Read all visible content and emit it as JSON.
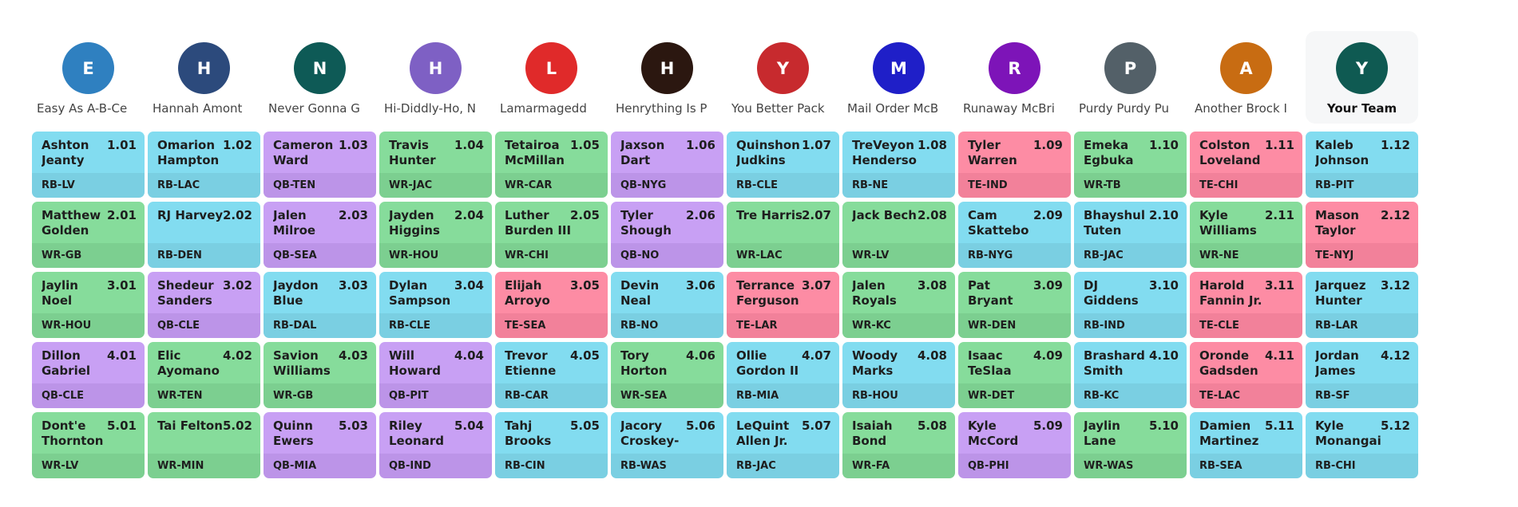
{
  "teams": [
    {
      "initial": "E",
      "name": "Easy As A-B-Ce",
      "color": "#2f80c0"
    },
    {
      "initial": "H",
      "name": "Hannah Amont",
      "color": "#2c4a7c"
    },
    {
      "initial": "N",
      "name": "Never Gonna G",
      "color": "#0e5a56"
    },
    {
      "initial": "H",
      "name": "Hi-Diddly-Ho, N",
      "color": "#7e60c4"
    },
    {
      "initial": "L",
      "name": "Lamarmagedd",
      "color": "#e02a2a"
    },
    {
      "initial": "H",
      "name": "Henrything Is P",
      "color": "#2b1710"
    },
    {
      "initial": "Y",
      "name": "You Better Pack",
      "color": "#c72a2e"
    },
    {
      "initial": "M",
      "name": "Mail Order McB",
      "color": "#1f1fc8"
    },
    {
      "initial": "R",
      "name": "Runaway McBri",
      "color": "#7d14b8"
    },
    {
      "initial": "P",
      "name": "Purdy Purdy Pu",
      "color": "#536068"
    },
    {
      "initial": "A",
      "name": "Another Brock I",
      "color": "#c86c12"
    },
    {
      "initial": "Y",
      "name": "Your Team",
      "color": "#0f5a52"
    }
  ],
  "rounds": [
    [
      {
        "name": "Ashton Jeanty",
        "pick": "1.01",
        "pos": "RB-LV",
        "type": "RB"
      },
      {
        "name": "Omarion Hampton",
        "pick": "1.02",
        "pos": "RB-LAC",
        "type": "RB"
      },
      {
        "name": "Cameron Ward",
        "pick": "1.03",
        "pos": "QB-TEN",
        "type": "QB"
      },
      {
        "name": "Travis Hunter",
        "pick": "1.04",
        "pos": "WR-JAC",
        "type": "WR"
      },
      {
        "name": "Tetairoa McMillan",
        "pick": "1.05",
        "pos": "WR-CAR",
        "type": "WR"
      },
      {
        "name": "Jaxson Dart",
        "pick": "1.06",
        "pos": "QB-NYG",
        "type": "QB"
      },
      {
        "name": "Quinshon Judkins",
        "pick": "1.07",
        "pos": "RB-CLE",
        "type": "RB"
      },
      {
        "name": "TreVeyon Henderson",
        "pick": "1.08",
        "pos": "RB-NE",
        "type": "RB"
      },
      {
        "name": "Tyler Warren",
        "pick": "1.09",
        "pos": "TE-IND",
        "type": "TE"
      },
      {
        "name": "Emeka Egbuka",
        "pick": "1.10",
        "pos": "WR-TB",
        "type": "WR"
      },
      {
        "name": "Colston Loveland",
        "pick": "1.11",
        "pos": "TE-CHI",
        "type": "TE"
      },
      {
        "name": "Kaleb Johnson",
        "pick": "1.12",
        "pos": "RB-PIT",
        "type": "RB"
      }
    ],
    [
      {
        "name": "Matthew Golden",
        "pick": "2.01",
        "pos": "WR-GB",
        "type": "WR"
      },
      {
        "name": "RJ Harvey",
        "pick": "2.02",
        "pos": "RB-DEN",
        "type": "RB"
      },
      {
        "name": "Jalen Milroe",
        "pick": "2.03",
        "pos": "QB-SEA",
        "type": "QB"
      },
      {
        "name": "Jayden Higgins",
        "pick": "2.04",
        "pos": "WR-HOU",
        "type": "WR"
      },
      {
        "name": "Luther Burden III",
        "pick": "2.05",
        "pos": "WR-CHI",
        "type": "WR"
      },
      {
        "name": "Tyler Shough",
        "pick": "2.06",
        "pos": "QB-NO",
        "type": "QB"
      },
      {
        "name": "Tre Harris",
        "pick": "2.07",
        "pos": "WR-LAC",
        "type": "WR"
      },
      {
        "name": "Jack Bech",
        "pick": "2.08",
        "pos": "WR-LV",
        "type": "WR"
      },
      {
        "name": "Cam Skattebo",
        "pick": "2.09",
        "pos": "RB-NYG",
        "type": "RB"
      },
      {
        "name": "Bhayshul Tuten",
        "pick": "2.10",
        "pos": "RB-JAC",
        "type": "RB"
      },
      {
        "name": "Kyle Williams",
        "pick": "2.11",
        "pos": "WR-NE",
        "type": "WR"
      },
      {
        "name": "Mason Taylor",
        "pick": "2.12",
        "pos": "TE-NYJ",
        "type": "TE"
      }
    ],
    [
      {
        "name": "Jaylin Noel",
        "pick": "3.01",
        "pos": "WR-HOU",
        "type": "WR"
      },
      {
        "name": "Shedeur Sanders",
        "pick": "3.02",
        "pos": "QB-CLE",
        "type": "QB"
      },
      {
        "name": "Jaydon Blue",
        "pick": "3.03",
        "pos": "RB-DAL",
        "type": "RB"
      },
      {
        "name": "Dylan Sampson",
        "pick": "3.04",
        "pos": "RB-CLE",
        "type": "RB"
      },
      {
        "name": "Elijah Arroyo",
        "pick": "3.05",
        "pos": "TE-SEA",
        "type": "TE"
      },
      {
        "name": "Devin Neal",
        "pick": "3.06",
        "pos": "RB-NO",
        "type": "RB"
      },
      {
        "name": "Terrance Ferguson",
        "pick": "3.07",
        "pos": "TE-LAR",
        "type": "TE"
      },
      {
        "name": "Jalen Royals",
        "pick": "3.08",
        "pos": "WR-KC",
        "type": "WR"
      },
      {
        "name": "Pat Bryant",
        "pick": "3.09",
        "pos": "WR-DEN",
        "type": "WR"
      },
      {
        "name": "DJ Giddens",
        "pick": "3.10",
        "pos": "RB-IND",
        "type": "RB"
      },
      {
        "name": "Harold Fannin Jr.",
        "pick": "3.11",
        "pos": "TE-CLE",
        "type": "TE"
      },
      {
        "name": "Jarquez Hunter",
        "pick": "3.12",
        "pos": "RB-LAR",
        "type": "RB"
      }
    ],
    [
      {
        "name": "Dillon Gabriel",
        "pick": "4.01",
        "pos": "QB-CLE",
        "type": "QB"
      },
      {
        "name": "Elic Ayomanor",
        "pick": "4.02",
        "pos": "WR-TEN",
        "type": "WR"
      },
      {
        "name": "Savion Williams",
        "pick": "4.03",
        "pos": "WR-GB",
        "type": "WR"
      },
      {
        "name": "Will Howard",
        "pick": "4.04",
        "pos": "QB-PIT",
        "type": "QB"
      },
      {
        "name": "Trevor Etienne",
        "pick": "4.05",
        "pos": "RB-CAR",
        "type": "RB"
      },
      {
        "name": "Tory Horton",
        "pick": "4.06",
        "pos": "WR-SEA",
        "type": "WR"
      },
      {
        "name": "Ollie Gordon II",
        "pick": "4.07",
        "pos": "RB-MIA",
        "type": "RB"
      },
      {
        "name": "Woody Marks",
        "pick": "4.08",
        "pos": "RB-HOU",
        "type": "RB"
      },
      {
        "name": "Isaac TeSlaa",
        "pick": "4.09",
        "pos": "WR-DET",
        "type": "WR"
      },
      {
        "name": "Brashard Smith",
        "pick": "4.10",
        "pos": "RB-KC",
        "type": "RB"
      },
      {
        "name": "Oronde Gadsden II",
        "pick": "4.11",
        "pos": "TE-LAC",
        "type": "TE"
      },
      {
        "name": "Jordan James",
        "pick": "4.12",
        "pos": "RB-SF",
        "type": "RB"
      }
    ],
    [
      {
        "name": "Dont'e Thornton J",
        "pick": "5.01",
        "pos": "WR-LV",
        "type": "WR"
      },
      {
        "name": "Tai Felton",
        "pick": "5.02",
        "pos": "WR-MIN",
        "type": "WR"
      },
      {
        "name": "Quinn Ewers",
        "pick": "5.03",
        "pos": "QB-MIA",
        "type": "QB"
      },
      {
        "name": "Riley Leonard",
        "pick": "5.04",
        "pos": "QB-IND",
        "type": "QB"
      },
      {
        "name": "Tahj Brooks",
        "pick": "5.05",
        "pos": "RB-CIN",
        "type": "RB"
      },
      {
        "name": "Jacory Croskey-M",
        "pick": "5.06",
        "pos": "RB-WAS",
        "type": "RB"
      },
      {
        "name": "LeQuint Allen Jr.",
        "pick": "5.07",
        "pos": "RB-JAC",
        "type": "RB"
      },
      {
        "name": "Isaiah Bond",
        "pick": "5.08",
        "pos": "WR-FA",
        "type": "WR"
      },
      {
        "name": "Kyle McCord",
        "pick": "5.09",
        "pos": "QB-PHI",
        "type": "QB"
      },
      {
        "name": "Jaylin Lane",
        "pick": "5.10",
        "pos": "WR-WAS",
        "type": "WR"
      },
      {
        "name": "Damien Martinez",
        "pick": "5.11",
        "pos": "RB-SEA",
        "type": "RB"
      },
      {
        "name": "Kyle Monangai",
        "pick": "5.12",
        "pos": "RB-CHI",
        "type": "RB"
      }
    ]
  ]
}
